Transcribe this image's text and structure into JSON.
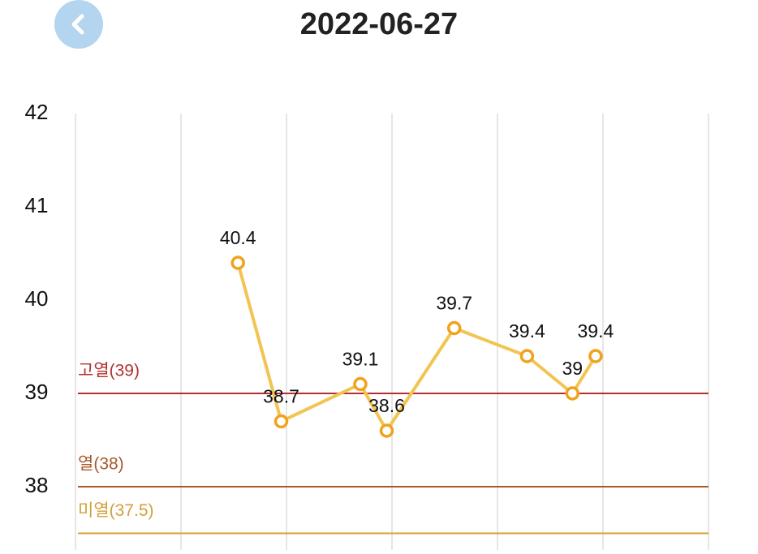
{
  "header": {
    "title": "2022-06-27"
  },
  "chart_data": {
    "type": "line",
    "x": [
      1.54,
      1.95,
      2.7,
      2.95,
      3.59,
      4.28,
      4.71,
      4.93
    ],
    "series": [
      {
        "color": "#f2c451",
        "marker_color": "#f0a21e",
        "values": [
          40.4,
          38.7,
          39.1,
          38.6,
          39.7,
          39.4,
          39,
          39.4
        ]
      }
    ],
    "xlim": [
      0,
      6
    ],
    "xticks": [
      0,
      1,
      2,
      3,
      4,
      5,
      6
    ],
    "ylim": [
      37.3,
      42
    ],
    "yticks": [
      38,
      39,
      40,
      41,
      42
    ],
    "thresholds": [
      {
        "label": "고열(39)",
        "value": 39,
        "color": "#b2302f"
      },
      {
        "label": "열(38)",
        "value": 38,
        "color": "#a9582b"
      },
      {
        "label": "미열(37.5)",
        "value": 37.5,
        "color": "#d3a03a"
      }
    ],
    "grid": true
  }
}
